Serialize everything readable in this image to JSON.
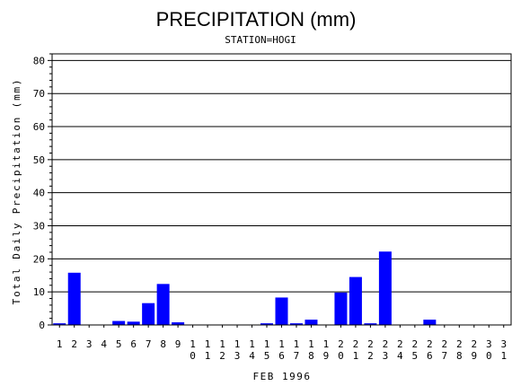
{
  "chart_data": {
    "type": "bar",
    "title": "PRECIPITATION (mm)",
    "subtitle": "STATION=HOGI",
    "xlabel": "FEB 1996",
    "ylabel": "Total Daily Precipitation (mm)",
    "ylim": [
      0,
      82
    ],
    "yticks": [
      0,
      10,
      20,
      30,
      40,
      50,
      60,
      70,
      80
    ],
    "grid": "horizontal",
    "bar_color": "#0000ff",
    "categories": [
      "1",
      "2",
      "3",
      "4",
      "5",
      "6",
      "7",
      "8",
      "9",
      "10",
      "11",
      "12",
      "13",
      "14",
      "15",
      "16",
      "17",
      "18",
      "19",
      "20",
      "21",
      "22",
      "23",
      "24",
      "25",
      "26",
      "27",
      "28",
      "29",
      "30",
      "31"
    ],
    "values": [
      0.5,
      15.8,
      0,
      0,
      1.2,
      1.0,
      6.6,
      12.4,
      0.8,
      0,
      0,
      0,
      0,
      0,
      0.5,
      8.3,
      0.5,
      1.6,
      0,
      9.8,
      14.5,
      0.5,
      22.2,
      0,
      0,
      1.6,
      0,
      0,
      0,
      0,
      0
    ]
  }
}
